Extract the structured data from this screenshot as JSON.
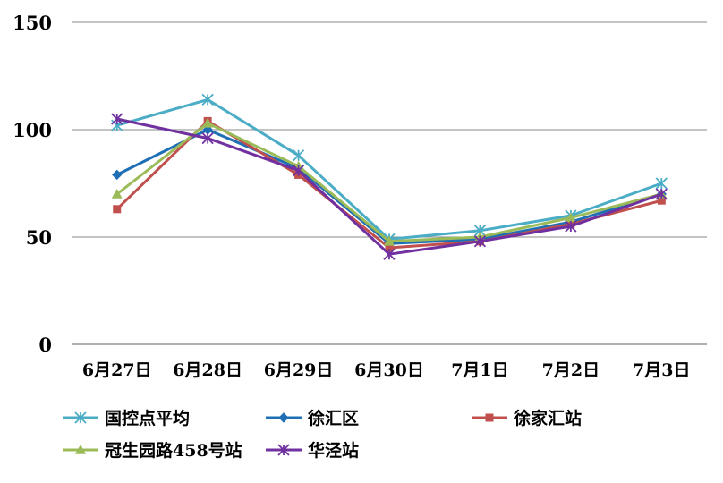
{
  "chart_data": {
    "type": "line",
    "title": "",
    "xlabel": "",
    "ylabel": "",
    "categories": [
      "6月27日",
      "6月28日",
      "6月29日",
      "6月30日",
      "7月1日",
      "7月2日",
      "7月3日"
    ],
    "ylim": [
      0,
      150
    ],
    "yticks": [
      0,
      50,
      100,
      150
    ],
    "grid": true,
    "legend_position": "bottom",
    "series": [
      {
        "name": "国控点平均",
        "color": "#4bacc6",
        "marker": "star",
        "values": [
          102,
          114,
          88,
          49,
          53,
          60,
          75
        ]
      },
      {
        "name": "徐汇区",
        "color": "#1f6fb5",
        "marker": "diamond",
        "values": [
          79,
          100,
          82,
          47,
          49,
          57,
          70
        ]
      },
      {
        "name": "徐家汇站",
        "color": "#c0504d",
        "marker": "square",
        "values": [
          63,
          104,
          79,
          45,
          48,
          56,
          67
        ]
      },
      {
        "name": "冠生园路458号站",
        "color": "#9bbb59",
        "marker": "triangle",
        "values": [
          70,
          103,
          83,
          48,
          50,
          59,
          70
        ]
      },
      {
        "name": "华泾站",
        "color": "#7030a0",
        "marker": "star",
        "values": [
          105,
          96,
          81,
          42,
          48,
          55,
          70
        ]
      }
    ]
  }
}
